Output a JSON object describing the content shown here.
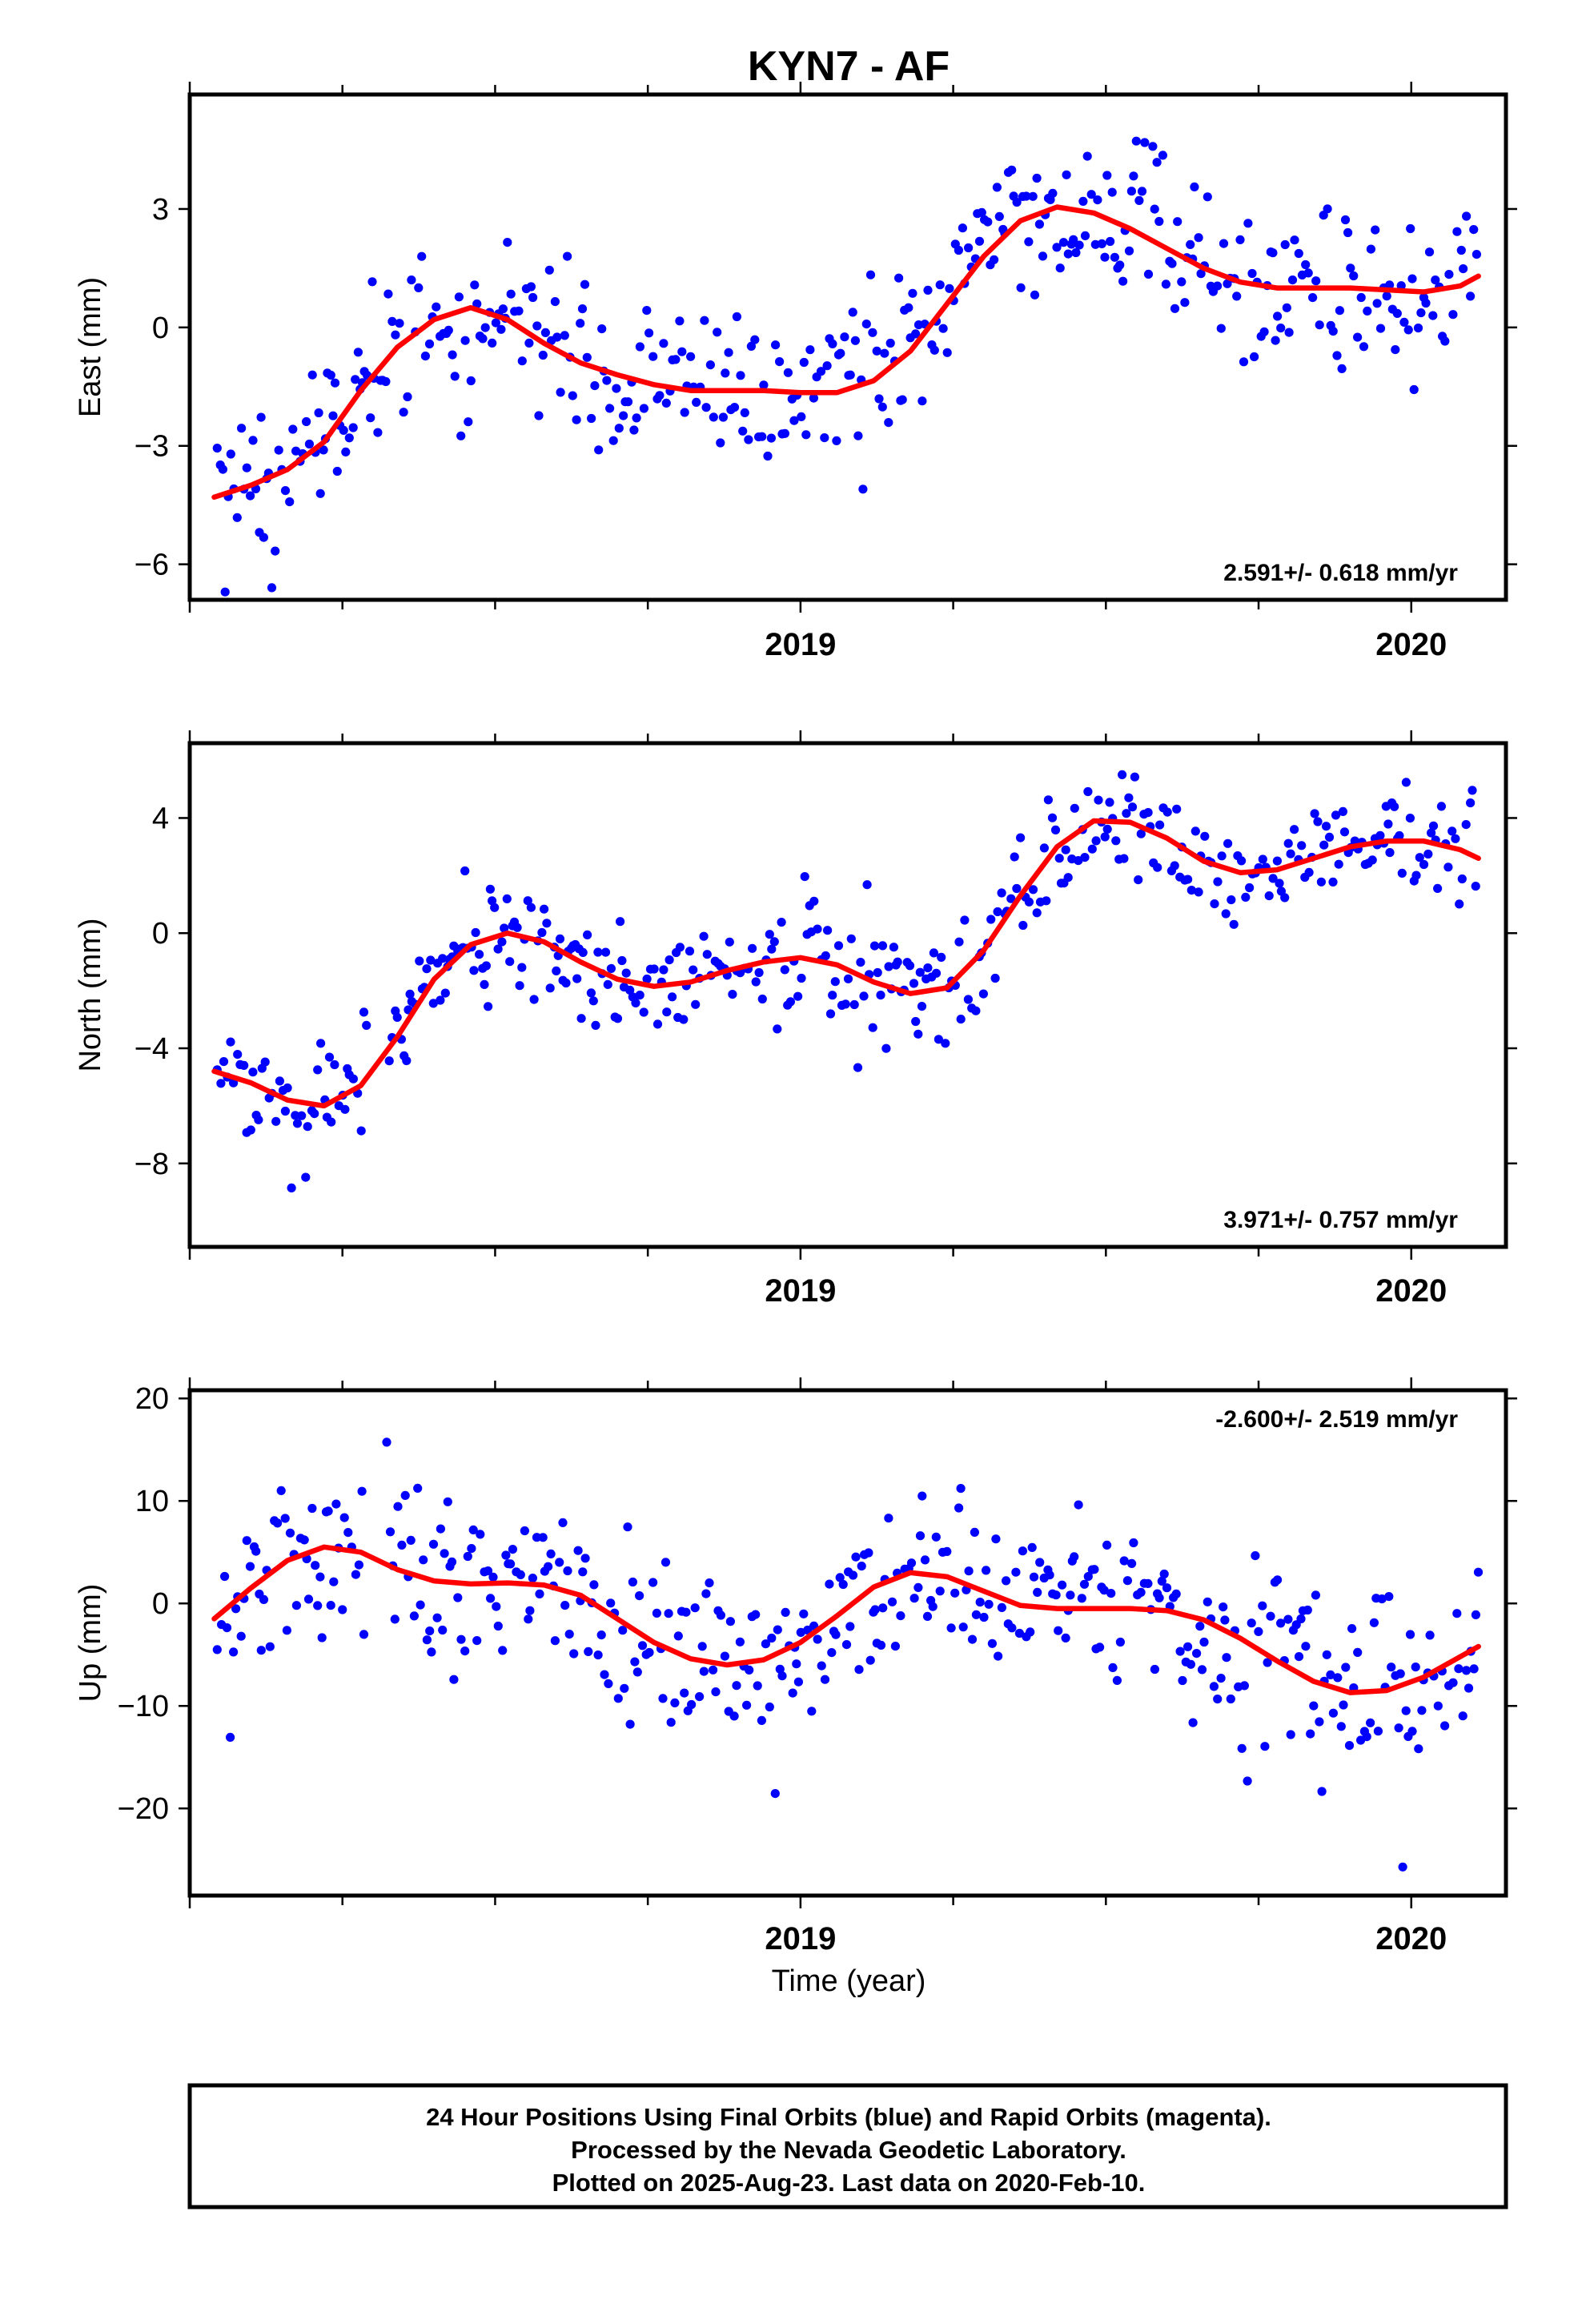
{
  "title": "KYN7 - AF",
  "chart_data": [
    {
      "type": "scatter",
      "ylabel": "East (mm)",
      "ylim": [
        -6.9,
        5.9
      ],
      "yticks": [
        -6,
        -3,
        0,
        3
      ],
      "ytick_labels": [
        "-6",
        "-3",
        "0",
        "3"
      ],
      "xlim": [
        2018.0,
        2020.155
      ],
      "xticks": [
        2019,
        2020
      ],
      "xtick_labels": [
        "2019",
        "2020"
      ],
      "rate": "2.591+/- 0.618 mm/yr",
      "rate_position": "bottom-right",
      "series": [
        {
          "role": "daily-positions",
          "color": "#0000ff",
          "model": {
            "offset": 0.0,
            "trend": 2.591,
            "noise": 1.05,
            "harmonics": [
              [
                0.25,
                1.6,
                -0.35,
                0.45
              ]
            ]
          },
          "gaps": []
        },
        {
          "role": "model-fit",
          "color": "#ff0000",
          "x": [
            2018.04,
            2018.1,
            2018.16,
            2018.22,
            2018.28,
            2018.34,
            2018.4,
            2018.46,
            2018.52,
            2018.58,
            2018.64,
            2018.7,
            2018.76,
            2018.82,
            2018.88,
            2018.94,
            2019.0,
            2019.06,
            2019.12,
            2019.18,
            2019.24,
            2019.3,
            2019.36,
            2019.42,
            2019.48,
            2019.54,
            2019.6,
            2019.66,
            2019.72,
            2019.78,
            2019.84,
            2019.9,
            2019.96,
            2020.02,
            2020.08,
            2020.11
          ],
          "y": [
            -4.3,
            -4.0,
            -3.6,
            -2.9,
            -1.6,
            -0.5,
            0.2,
            0.5,
            0.2,
            -0.4,
            -0.9,
            -1.2,
            -1.45,
            -1.6,
            -1.6,
            -1.6,
            -1.65,
            -1.65,
            -1.35,
            -0.6,
            0.6,
            1.8,
            2.7,
            3.05,
            2.9,
            2.5,
            2.0,
            1.5,
            1.15,
            1.0,
            1.0,
            1.0,
            0.95,
            0.9,
            1.05,
            1.3
          ]
        }
      ]
    },
    {
      "type": "scatter",
      "ylabel": "North (mm)",
      "ylim": [
        -10.9,
        6.6
      ],
      "yticks": [
        -8,
        -4,
        0,
        4
      ],
      "ytick_labels": [
        "-8",
        "-4",
        "0",
        "4"
      ],
      "xlim": [
        2018.0,
        2020.155
      ],
      "xticks": [
        2019,
        2020
      ],
      "xtick_labels": [
        "2019",
        "2020"
      ],
      "rate": "3.971+/- 0.757 mm/yr",
      "rate_position": "bottom-right",
      "series": [
        {
          "role": "daily-positions",
          "color": "#0000ff",
          "model": {
            "offset": 0.0,
            "trend": 3.971,
            "noise": 1.0,
            "harmonics": [
              [
                0.25,
                1.0,
                0.1,
                0.6
              ]
            ]
          },
          "gaps": [
            [
              2018.29,
              2018.32
            ]
          ]
        },
        {
          "role": "model-fit",
          "color": "#ff0000",
          "x": [
            2018.04,
            2018.1,
            2018.16,
            2018.22,
            2018.28,
            2018.34,
            2018.4,
            2018.46,
            2018.52,
            2018.58,
            2018.64,
            2018.7,
            2018.76,
            2018.82,
            2018.88,
            2018.94,
            2019.0,
            2019.06,
            2019.12,
            2019.18,
            2019.24,
            2019.3,
            2019.36,
            2019.42,
            2019.48,
            2019.54,
            2019.6,
            2019.66,
            2019.72,
            2019.78,
            2019.84,
            2019.9,
            2019.96,
            2020.02,
            2020.08,
            2020.11
          ],
          "y": [
            -4.8,
            -5.2,
            -5.8,
            -6.0,
            -5.3,
            -3.6,
            -1.6,
            -0.4,
            0.0,
            -0.3,
            -1.0,
            -1.6,
            -1.85,
            -1.7,
            -1.3,
            -1.0,
            -0.85,
            -1.1,
            -1.7,
            -2.1,
            -1.9,
            -0.6,
            1.3,
            3.0,
            3.9,
            3.85,
            3.3,
            2.5,
            2.1,
            2.2,
            2.6,
            3.0,
            3.2,
            3.2,
            2.9,
            2.6
          ]
        }
      ]
    },
    {
      "type": "scatter",
      "ylabel": "Up (mm)",
      "ylim": [
        -28.5,
        20.8
      ],
      "yticks": [
        -20,
        -10,
        0,
        10,
        20
      ],
      "ytick_labels": [
        "-20",
        "-10",
        "0",
        "10",
        "20"
      ],
      "xlim": [
        2018.0,
        2020.155
      ],
      "xticks": [
        2019,
        2020
      ],
      "xtick_labels": [
        "2019",
        "2020"
      ],
      "rate": "-2.600+/- 2.519 mm/yr",
      "rate_position": "top-right",
      "series": [
        {
          "role": "daily-positions",
          "color": "#0000ff",
          "model": {
            "offset": 0.0,
            "trend": -2.6,
            "noise": 4.3,
            "harmonics": [
              [
                0.18,
                4.0,
                1.2,
                -1.5
              ]
            ]
          },
          "gaps": [
            [
              2018.29,
              2018.32
            ]
          ]
        },
        {
          "role": "model-fit",
          "color": "#ff0000",
          "x": [
            2018.04,
            2018.1,
            2018.16,
            2018.22,
            2018.28,
            2018.34,
            2018.4,
            2018.46,
            2018.52,
            2018.58,
            2018.64,
            2018.7,
            2018.76,
            2018.82,
            2018.88,
            2018.94,
            2019.0,
            2019.06,
            2019.12,
            2019.18,
            2019.24,
            2019.3,
            2019.36,
            2019.42,
            2019.48,
            2019.54,
            2019.6,
            2019.66,
            2019.72,
            2019.78,
            2019.84,
            2019.9,
            2019.96,
            2020.02,
            2020.08,
            2020.11
          ],
          "y": [
            -1.5,
            1.5,
            4.2,
            5.5,
            5.0,
            3.3,
            2.2,
            1.9,
            2.0,
            1.8,
            0.8,
            -1.5,
            -3.8,
            -5.4,
            -6.0,
            -5.5,
            -3.8,
            -1.2,
            1.6,
            3.0,
            2.6,
            1.2,
            -0.2,
            -0.5,
            -0.5,
            -0.5,
            -0.7,
            -1.6,
            -3.4,
            -5.6,
            -7.6,
            -8.7,
            -8.5,
            -7.2,
            -5.2,
            -4.2
          ]
        }
      ]
    }
  ],
  "xlabel": "Time (year)",
  "footer": {
    "lines": [
      "24 Hour Positions Using Final Orbits (blue) and Rapid Orbits (magenta).",
      "Processed by the Nevada Geodetic Laboratory.",
      "Plotted on 2025-Aug-23. Last data on 2020-Feb-10."
    ]
  }
}
